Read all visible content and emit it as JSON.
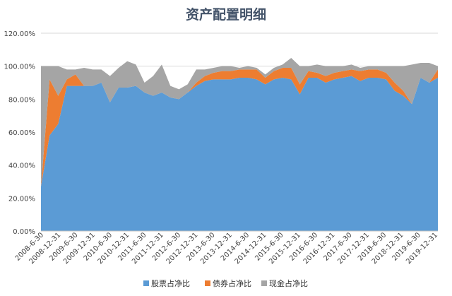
{
  "chart_data": {
    "type": "area",
    "stacked": true,
    "title": "资产配置明细",
    "xlabel": "",
    "ylabel": "",
    "ylim": [
      0,
      1.2
    ],
    "y_ticks": [
      "0.00%",
      "20.00%",
      "40.00%",
      "60.00%",
      "80.00%",
      "100.00%",
      "120.00%"
    ],
    "grid": true,
    "legend_position": "bottom",
    "x_tick_labels": [
      "2008-6-30",
      "2008-12-31",
      "2009-6-30",
      "2009-12-31",
      "2010-6-30",
      "2010-12-31",
      "2011-6-30",
      "2011-12-31",
      "2012-6-30",
      "2012-12-31",
      "2013-6-30",
      "2013-12-31",
      "2014-6-30",
      "2014-12-31",
      "2015-6-30",
      "2015-12-31",
      "2016-6-30",
      "2016-12-31",
      "2017-6-30",
      "2017-12-31",
      "2018-6-30",
      "2018-12-31",
      "2019-6-30",
      "2019-12-31"
    ],
    "x": [
      "2008-6-30",
      "2008-9-30",
      "2008-12-31",
      "2009-3-31",
      "2009-6-30",
      "2009-9-30",
      "2009-12-31",
      "2010-3-31",
      "2010-6-30",
      "2010-9-30",
      "2010-12-31",
      "2011-3-31",
      "2011-6-30",
      "2011-9-30",
      "2011-12-31",
      "2012-3-31",
      "2012-6-30",
      "2012-9-30",
      "2012-12-31",
      "2013-3-31",
      "2013-6-30",
      "2013-9-30",
      "2013-12-31",
      "2014-3-31",
      "2014-6-30",
      "2014-9-30",
      "2014-12-31",
      "2015-3-31",
      "2015-6-30",
      "2015-9-30",
      "2015-12-31",
      "2016-3-31",
      "2016-6-30",
      "2016-9-30",
      "2016-12-31",
      "2017-3-31",
      "2017-6-30",
      "2017-9-30",
      "2017-12-31",
      "2018-3-31",
      "2018-6-30",
      "2018-9-30",
      "2018-12-31",
      "2019-3-31",
      "2019-6-30",
      "2019-9-30",
      "2019-12-31"
    ],
    "series": [
      {
        "name": "股票占净比",
        "color": "#5b9bd5",
        "values": [
          0.27,
          0.58,
          0.65,
          0.88,
          0.88,
          0.88,
          0.88,
          0.9,
          0.78,
          0.87,
          0.87,
          0.88,
          0.84,
          0.82,
          0.84,
          0.81,
          0.8,
          0.84,
          0.88,
          0.91,
          0.92,
          0.92,
          0.92,
          0.93,
          0.93,
          0.92,
          0.89,
          0.92,
          0.93,
          0.92,
          0.83,
          0.93,
          0.93,
          0.9,
          0.92,
          0.93,
          0.94,
          0.91,
          0.93,
          0.93,
          0.92,
          0.85,
          0.82,
          0.77,
          0.93,
          0.9,
          0.93
        ]
      },
      {
        "name": "债券占净比",
        "color": "#ed7d31",
        "values": [
          0.0,
          0.34,
          0.17,
          0.04,
          0.07,
          0.0,
          0.0,
          0.0,
          0.0,
          0.0,
          0.0,
          0.0,
          0.0,
          0.0,
          0.0,
          0.0,
          0.0,
          0.0,
          0.02,
          0.03,
          0.04,
          0.05,
          0.05,
          0.05,
          0.05,
          0.06,
          0.04,
          0.05,
          0.06,
          0.07,
          0.06,
          0.04,
          0.03,
          0.04,
          0.04,
          0.04,
          0.04,
          0.06,
          0.05,
          0.05,
          0.04,
          0.05,
          0.03,
          0.0,
          0.0,
          0.0,
          0.05
        ]
      },
      {
        "name": "现金占净比",
        "color": "#a5a5a5",
        "values": [
          0.73,
          0.08,
          0.18,
          0.06,
          0.03,
          0.11,
          0.1,
          0.08,
          0.16,
          0.12,
          0.16,
          0.13,
          0.06,
          0.12,
          0.17,
          0.07,
          0.06,
          0.05,
          0.08,
          0.04,
          0.03,
          0.03,
          0.03,
          0.01,
          0.02,
          0.01,
          0.02,
          0.02,
          0.02,
          0.06,
          0.11,
          0.03,
          0.05,
          0.06,
          0.04,
          0.03,
          0.03,
          0.02,
          0.02,
          0.02,
          0.04,
          0.1,
          0.15,
          0.24,
          0.09,
          0.12,
          0.02
        ]
      }
    ]
  }
}
